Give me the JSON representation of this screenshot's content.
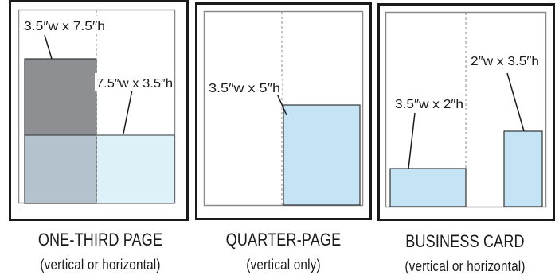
{
  "colors": {
    "frame": "#1a1a1a",
    "page_border": "#8a8a8a",
    "guide": "#9a9a9a",
    "dark_ad": "#8e8f93",
    "grey_blue_ad": "#b3c2cc",
    "light_blue_ad": "#ddf1f9",
    "blue_ad": "#c4e4f6"
  },
  "panels": [
    {
      "caption": "ONE-THIRD PAGE",
      "subcaption": "(vertical or horizontal)",
      "labels": [
        "3.5″w x 7.5″h",
        "7.5″w x 3.5″h"
      ]
    },
    {
      "caption": "QUARTER-PAGE",
      "subcaption": "(vertical only)",
      "labels": [
        "3.5″w x 5″h"
      ]
    },
    {
      "caption": "BUSINESS CARD",
      "subcaption": "(vertical or horizontal)",
      "labels": [
        "3.5″w x 2″h",
        "2″w x 3.5″h"
      ]
    }
  ]
}
